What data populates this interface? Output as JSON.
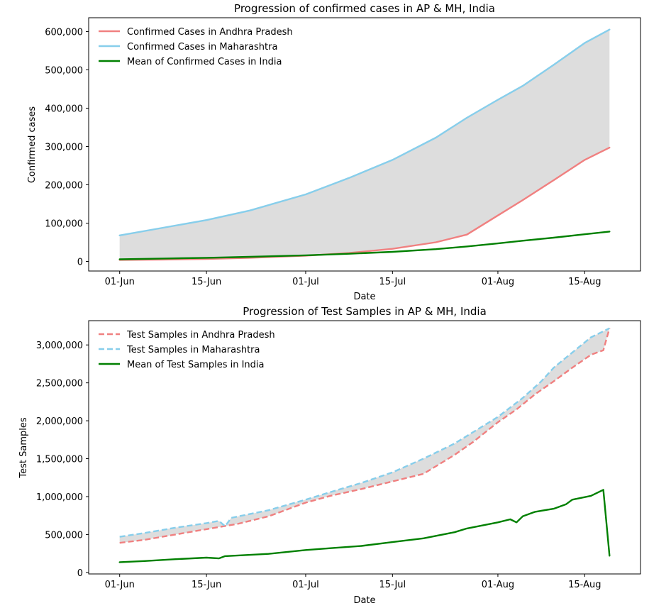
{
  "chart_data": [
    {
      "type": "line",
      "title": "Progression of confirmed cases in AP & MH, India",
      "xlabel": "Date",
      "ylabel": "Confirmed cases",
      "xlim": [
        "2020-05-27",
        "2020-08-24"
      ],
      "ylim": [
        -25000,
        636000
      ],
      "xticks": [
        {
          "date": "2020-06-01",
          "label": "01-Jun"
        },
        {
          "date": "2020-06-15",
          "label": "15-Jun"
        },
        {
          "date": "2020-07-01",
          "label": "01-Jul"
        },
        {
          "date": "2020-07-15",
          "label": "15-Jul"
        },
        {
          "date": "2020-08-01",
          "label": "01-Aug"
        },
        {
          "date": "2020-08-15",
          "label": "15-Aug"
        }
      ],
      "yticks": [
        {
          "value": 0,
          "label": "0"
        },
        {
          "value": 100000,
          "label": "100,000"
        },
        {
          "value": 200000,
          "label": "200,000"
        },
        {
          "value": 300000,
          "label": "300,000"
        },
        {
          "value": 400000,
          "label": "400,000"
        },
        {
          "value": 500000,
          "label": "500,000"
        },
        {
          "value": 600000,
          "label": "600,000"
        }
      ],
      "grid": false,
      "legend_position": "top-left",
      "fill_between": {
        "series": [
          0,
          1
        ],
        "color": "#dddddd"
      },
      "series": [
        {
          "name": "Confirmed Cases in Andhra Pradesh",
          "color": "#f08080",
          "dash": "solid",
          "points": [
            [
              "2020-06-01",
              3800
            ],
            [
              "2020-06-08",
              4900
            ],
            [
              "2020-06-15",
              6500
            ],
            [
              "2020-06-22",
              9500
            ],
            [
              "2020-07-01",
              15000
            ],
            [
              "2020-07-08",
              22000
            ],
            [
              "2020-07-15",
              33000
            ],
            [
              "2020-07-22",
              50000
            ],
            [
              "2020-07-27",
              70000
            ],
            [
              "2020-08-01",
              120000
            ],
            [
              "2020-08-05",
              160000
            ],
            [
              "2020-08-10",
              212000
            ],
            [
              "2020-08-15",
              265000
            ],
            [
              "2020-08-19",
              297000
            ]
          ]
        },
        {
          "name": "Confirmed Cases in Maharashtra",
          "color": "#87ceeb",
          "dash": "solid",
          "points": [
            [
              "2020-06-01",
              68000
            ],
            [
              "2020-06-08",
              88000
            ],
            [
              "2020-06-15",
              108000
            ],
            [
              "2020-06-22",
              133000
            ],
            [
              "2020-07-01",
              175000
            ],
            [
              "2020-07-08",
              218000
            ],
            [
              "2020-07-15",
              265000
            ],
            [
              "2020-07-22",
              323000
            ],
            [
              "2020-07-27",
              375000
            ],
            [
              "2020-08-01",
              422000
            ],
            [
              "2020-08-05",
              458000
            ],
            [
              "2020-08-10",
              513000
            ],
            [
              "2020-08-15",
              570000
            ],
            [
              "2020-08-19",
              605000
            ]
          ]
        },
        {
          "name": "Mean of Confirmed Cases in India",
          "color": "#008000",
          "dash": "solid",
          "points": [
            [
              "2020-06-01",
              5500
            ],
            [
              "2020-06-08",
              7500
            ],
            [
              "2020-06-15",
              9500
            ],
            [
              "2020-06-22",
              12000
            ],
            [
              "2020-07-01",
              16000
            ],
            [
              "2020-07-08",
              20000
            ],
            [
              "2020-07-15",
              25000
            ],
            [
              "2020-07-22",
              32000
            ],
            [
              "2020-07-27",
              39000
            ],
            [
              "2020-08-01",
              47000
            ],
            [
              "2020-08-05",
              54000
            ],
            [
              "2020-08-10",
              62000
            ],
            [
              "2020-08-15",
              71000
            ],
            [
              "2020-08-19",
              78000
            ]
          ]
        }
      ]
    },
    {
      "type": "line",
      "title": "Progression of Test Samples in AP & MH, India",
      "xlabel": "Date",
      "ylabel": "Test Samples",
      "xlim": [
        "2020-05-27",
        "2020-08-24"
      ],
      "ylim": [
        -20000,
        3320000
      ],
      "xticks": [
        {
          "date": "2020-06-01",
          "label": "01-Jun"
        },
        {
          "date": "2020-06-15",
          "label": "15-Jun"
        },
        {
          "date": "2020-07-01",
          "label": "01-Jul"
        },
        {
          "date": "2020-07-15",
          "label": "15-Jul"
        },
        {
          "date": "2020-08-01",
          "label": "01-Aug"
        },
        {
          "date": "2020-08-15",
          "label": "15-Aug"
        }
      ],
      "yticks": [
        {
          "value": 0,
          "label": "0"
        },
        {
          "value": 500000,
          "label": "500,000"
        },
        {
          "value": 1000000,
          "label": "1,000,000"
        },
        {
          "value": 1500000,
          "label": "1,500,000"
        },
        {
          "value": 2000000,
          "label": "2,000,000"
        },
        {
          "value": 2500000,
          "label": "2,500,000"
        },
        {
          "value": 3000000,
          "label": "3,000,000"
        }
      ],
      "grid": false,
      "legend_position": "top-left",
      "fill_between": {
        "series": [
          0,
          1
        ],
        "color": "#dddddd"
      },
      "series": [
        {
          "name": "Test Samples in Andhra Pradesh",
          "color": "#f08080",
          "dash": "dashed",
          "points": [
            [
              "2020-06-01",
              390000
            ],
            [
              "2020-06-05",
              430000
            ],
            [
              "2020-06-10",
              500000
            ],
            [
              "2020-06-15",
              570000
            ],
            [
              "2020-06-20",
              640000
            ],
            [
              "2020-06-25",
              740000
            ],
            [
              "2020-07-01",
              920000
            ],
            [
              "2020-07-05",
              1010000
            ],
            [
              "2020-07-10",
              1100000
            ],
            [
              "2020-07-15",
              1200000
            ],
            [
              "2020-07-20",
              1300000
            ],
            [
              "2020-07-25",
              1550000
            ],
            [
              "2020-07-28",
              1720000
            ],
            [
              "2020-08-01",
              1980000
            ],
            [
              "2020-08-04",
              2150000
            ],
            [
              "2020-08-07",
              2350000
            ],
            [
              "2020-08-10",
              2520000
            ],
            [
              "2020-08-13",
              2700000
            ],
            [
              "2020-08-16",
              2870000
            ],
            [
              "2020-08-18",
              2930000
            ],
            [
              "2020-08-19",
              3220000
            ]
          ]
        },
        {
          "name": "Test Samples in Maharashtra",
          "color": "#87ceeb",
          "dash": "dashed",
          "points": [
            [
              "2020-06-01",
              470000
            ],
            [
              "2020-06-05",
              520000
            ],
            [
              "2020-06-10",
              590000
            ],
            [
              "2020-06-15",
              650000
            ],
            [
              "2020-06-17",
              680000
            ],
            [
              "2020-06-18",
              610000
            ],
            [
              "2020-06-19",
              720000
            ],
            [
              "2020-06-25",
              820000
            ],
            [
              "2020-07-01",
              960000
            ],
            [
              "2020-07-05",
              1060000
            ],
            [
              "2020-07-10",
              1180000
            ],
            [
              "2020-07-15",
              1320000
            ],
            [
              "2020-07-20",
              1500000
            ],
            [
              "2020-07-25",
              1700000
            ],
            [
              "2020-08-01",
              2050000
            ],
            [
              "2020-08-05",
              2300000
            ],
            [
              "2020-08-08",
              2520000
            ],
            [
              "2020-08-10",
              2700000
            ],
            [
              "2020-08-13",
              2900000
            ],
            [
              "2020-08-16",
              3100000
            ],
            [
              "2020-08-19",
              3220000
            ]
          ]
        },
        {
          "name": "Mean of Test Samples in India",
          "color": "#008000",
          "dash": "solid",
          "points": [
            [
              "2020-06-01",
              135000
            ],
            [
              "2020-06-05",
              150000
            ],
            [
              "2020-06-10",
              175000
            ],
            [
              "2020-06-15",
              195000
            ],
            [
              "2020-06-17",
              185000
            ],
            [
              "2020-06-18",
              215000
            ],
            [
              "2020-06-25",
              245000
            ],
            [
              "2020-07-01",
              295000
            ],
            [
              "2020-07-05",
              320000
            ],
            [
              "2020-07-10",
              350000
            ],
            [
              "2020-07-15",
              400000
            ],
            [
              "2020-07-20",
              450000
            ],
            [
              "2020-07-25",
              530000
            ],
            [
              "2020-07-27",
              580000
            ],
            [
              "2020-08-01",
              660000
            ],
            [
              "2020-08-03",
              700000
            ],
            [
              "2020-08-04",
              660000
            ],
            [
              "2020-08-05",
              740000
            ],
            [
              "2020-08-07",
              800000
            ],
            [
              "2020-08-10",
              840000
            ],
            [
              "2020-08-12",
              900000
            ],
            [
              "2020-08-13",
              960000
            ],
            [
              "2020-08-16",
              1010000
            ],
            [
              "2020-08-18",
              1090000
            ],
            [
              "2020-08-19",
              220000
            ]
          ]
        }
      ]
    }
  ]
}
